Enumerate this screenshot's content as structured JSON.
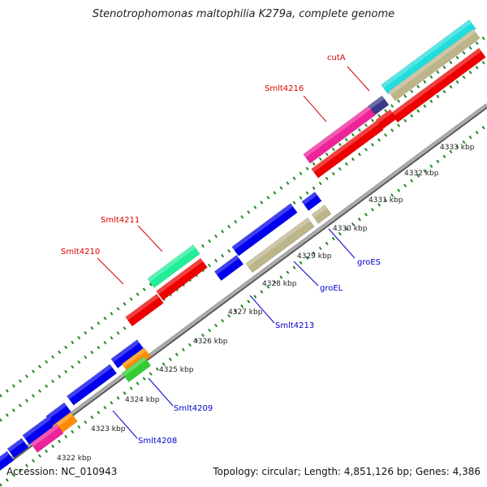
{
  "title": "Stenotrophomonas maltophilia K279a, complete genome",
  "footer": {
    "accession": "Accession: NC_010943",
    "summary": "Topology: circular; Length: 4,851,126 bp; Genes: 4,386"
  },
  "kbp_ticks": [
    "4322 kbp",
    "4323 kbp",
    "4324 kbp",
    "4325 kbp",
    "4326 kbp",
    "4327 kbp",
    "4328 kbp",
    "4329 kbp",
    "4330 kbp",
    "4331 kbp",
    "4332 kbp",
    "4333 kbp"
  ],
  "gene_labels": {
    "forward": [
      "cutA",
      "Smlt4216",
      "Smlt4211",
      "Smlt4210"
    ],
    "reverse": [
      "groES",
      "groEL",
      "Smlt4213",
      "Smlt4209",
      "Smlt4208"
    ]
  },
  "colors": {
    "forward_label": "#dd0000",
    "reverse_label": "#0000cc",
    "red": "#ee0000",
    "blue": "#0000ee",
    "magenta": "#ee2299",
    "cyan": "#22dddd",
    "khaki": "#bdb58a",
    "navy": "#3a3a88",
    "spring": "#22ee99",
    "orange": "#ff8c00",
    "green": "#33cc33",
    "tick": "#228822",
    "backbone": "#888888"
  }
}
